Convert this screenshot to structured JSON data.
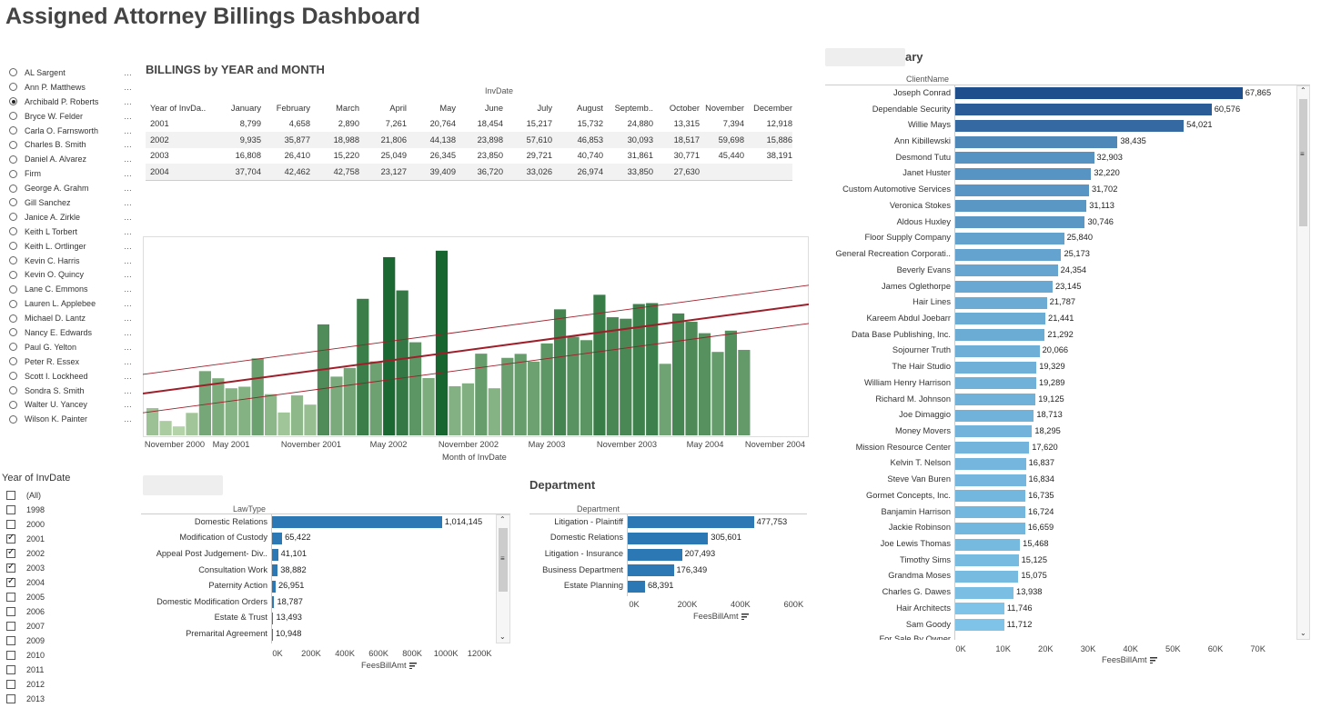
{
  "title": "Assigned Attorney Billings Dashboard",
  "attorneys": {
    "selected": "Archibald P. Roberts",
    "items": [
      "AL Sargent",
      "Ann P. Matthews",
      "Archibald P. Roberts",
      "Bryce W. Felder",
      "Carla O. Farnsworth",
      "Charles B. Smith",
      "Daniel A. Alvarez",
      "Firm",
      "George A. Grahm",
      "Gill Sanchez",
      "Janice A. Zirkle",
      "Keith L Torbert",
      "Keith L. Ortlinger",
      "Kevin C. Harris",
      "Kevin O. Quincy",
      "Lane C. Emmons",
      "Lauren L. Applebee",
      "Michael D.  Lantz",
      "Nancy E. Edwards",
      "Paul G. Yelton",
      "Peter R. Essex",
      "Scott I. Lockheed",
      "Sondra S. Smith",
      "Walter U. Yancey",
      "Wilson K. Painter"
    ],
    "more_icon": "…"
  },
  "year_filter": {
    "title": "Year of InvDate",
    "items": [
      {
        "label": "(All)",
        "checked": false
      },
      {
        "label": "1998",
        "checked": false
      },
      {
        "label": "2000",
        "checked": false
      },
      {
        "label": "2001",
        "checked": true
      },
      {
        "label": "2002",
        "checked": true
      },
      {
        "label": "2003",
        "checked": true
      },
      {
        "label": "2004",
        "checked": true
      },
      {
        "label": "2005",
        "checked": false
      },
      {
        "label": "2006",
        "checked": false
      },
      {
        "label": "2007",
        "checked": false
      },
      {
        "label": "2009",
        "checked": false
      },
      {
        "label": "2010",
        "checked": false
      },
      {
        "label": "2011",
        "checked": false
      },
      {
        "label": "2012",
        "checked": false
      },
      {
        "label": "2013",
        "checked": false
      }
    ]
  },
  "billings_table": {
    "title": "BILLINGS by YEAR and MONTH",
    "col_group": "InvDate",
    "row_header": "Year of InvDa..",
    "columns": [
      "January",
      "February",
      "March",
      "April",
      "May",
      "June",
      "July",
      "August",
      "Septemb..",
      "October",
      "November",
      "December"
    ],
    "rows": [
      {
        "year": "2001",
        "values": [
          "8,799",
          "4,658",
          "2,890",
          "7,261",
          "20,764",
          "18,454",
          "15,217",
          "15,732",
          "24,880",
          "13,315",
          "7,394",
          "12,918"
        ]
      },
      {
        "year": "2002",
        "values": [
          "9,935",
          "35,877",
          "18,988",
          "21,806",
          "44,138",
          "23,898",
          "57,610",
          "46,853",
          "30,093",
          "18,517",
          "59,698",
          "15,886"
        ]
      },
      {
        "year": "2003",
        "values": [
          "16,808",
          "26,410",
          "15,220",
          "25,049",
          "26,345",
          "23,850",
          "29,721",
          "40,740",
          "31,861",
          "30,771",
          "45,440",
          "38,191"
        ]
      },
      {
        "year": "2004",
        "values": [
          "37,704",
          "42,462",
          "42,758",
          "23,127",
          "39,409",
          "36,720",
          "33,026",
          "26,974",
          "33,850",
          "27,630",
          "",
          ""
        ]
      }
    ]
  },
  "chart_data": [
    {
      "type": "bar",
      "title": "",
      "xlabel": "Month of InvDate",
      "ylabel": "",
      "x_tick_labels": [
        "November 2000",
        "May 2001",
        "November 2001",
        "May 2002",
        "November 2002",
        "May 2003",
        "November 2003",
        "May 2004",
        "November 2004"
      ],
      "categories": [
        "2001-01",
        "2001-02",
        "2001-03",
        "2001-04",
        "2001-05",
        "2001-06",
        "2001-07",
        "2001-08",
        "2001-09",
        "2001-10",
        "2001-11",
        "2001-12",
        "2002-01",
        "2002-02",
        "2002-03",
        "2002-04",
        "2002-05",
        "2002-06",
        "2002-07",
        "2002-08",
        "2002-09",
        "2002-10",
        "2002-11",
        "2002-12",
        "2003-01",
        "2003-02",
        "2003-03",
        "2003-04",
        "2003-05",
        "2003-06",
        "2003-07",
        "2003-08",
        "2003-09",
        "2003-10",
        "2003-11",
        "2003-12",
        "2004-01",
        "2004-02",
        "2004-03",
        "2004-04",
        "2004-05",
        "2004-06",
        "2004-07",
        "2004-08",
        "2004-09",
        "2004-10"
      ],
      "values": [
        8799,
        4658,
        2890,
        7261,
        20764,
        18454,
        15217,
        15732,
        24880,
        13315,
        7394,
        12918,
        9935,
        35877,
        18988,
        21806,
        44138,
        23898,
        57610,
        46853,
        30093,
        18517,
        59698,
        15886,
        16808,
        26410,
        15220,
        25049,
        26345,
        23850,
        29721,
        40740,
        31861,
        30771,
        45440,
        38191,
        37704,
        42462,
        42758,
        23127,
        39409,
        36720,
        33026,
        26974,
        33850,
        27630
      ],
      "ylim": [
        0,
        62000
      ],
      "trend_lines": true,
      "grid": false,
      "colors": {
        "light": "#b5d3a8",
        "dark": "#17652f",
        "trend": "#a01e2a"
      }
    },
    {
      "type": "bar",
      "orientation": "horizontal",
      "title": "",
      "ylabel": "LawType",
      "xlabel": "FeesBillAmt",
      "categories": [
        "Domestic Relations",
        "Modification of Custody",
        "Appeal Post Judgement- Div..",
        "Consultation Work",
        "Paternity Action",
        "Domestic Modification Orders",
        "Estate & Trust",
        "Premarital Agreement"
      ],
      "values": [
        1014145,
        65422,
        41101,
        38882,
        26951,
        18787,
        13493,
        10948
      ],
      "value_labels": [
        "1,014,145",
        "65,422",
        "41,101",
        "38,882",
        "26,951",
        "18,787",
        "13,493",
        "10,948"
      ],
      "ticks": [
        "0K",
        "200K",
        "400K",
        "600K",
        "800K",
        "1000K",
        "1200K"
      ],
      "xlim": [
        0,
        1280000
      ],
      "colors": {
        "bar": "#2b78b5"
      }
    },
    {
      "type": "bar",
      "orientation": "horizontal",
      "title": "Department",
      "ylabel": "Department",
      "xlabel": "FeesBillAmt",
      "categories": [
        "Litigation - Plaintiff",
        "Domestic Relations",
        "Litigation - Insurance",
        "Business Department",
        "Estate Planning"
      ],
      "values": [
        477753,
        305601,
        207493,
        176349,
        68391
      ],
      "value_labels": [
        "477,753",
        "305,601",
        "207,493",
        "176,349",
        "68,391"
      ],
      "ticks": [
        "0K",
        "200K",
        "400K",
        "600K"
      ],
      "xlim": [
        0,
        640000
      ],
      "colors": {
        "bar": "#2b78b5"
      }
    },
    {
      "type": "bar",
      "orientation": "horizontal",
      "title": "ary",
      "ylabel": "ClientName",
      "xlabel": "FeesBillAmt",
      "categories": [
        "Joseph Conrad",
        "Dependable Security",
        "Willie Mays",
        "Ann Kibillewski",
        "Desmond Tutu",
        "Janet Huster",
        "Custom Automotive Services",
        "Veronica Stokes",
        "Aldous Huxley",
        "Floor Supply Company",
        "General Recreation Corporati..",
        "Beverly Evans",
        "James Oglethorpe",
        "Hair Lines",
        "Kareem Abdul Joebarr",
        "Data Base Publishing, Inc.",
        "Sojourner Truth",
        "The Hair Studio",
        "William Henry Harrison",
        "Richard M. Johnson",
        "Joe Dimaggio",
        "Money Movers",
        "Mission Resource Center",
        "Kelvin T. Nelson",
        "Steve Van Buren",
        "Gormet Concepts, Inc.",
        "Banjamin Harrison",
        "Jackie Robinson",
        "Joe Lewis Thomas",
        "Timothy Sims",
        "Grandma Moses",
        "Charles G. Dawes",
        "Hair Architects",
        "Sam Goody"
      ],
      "values": [
        67865,
        60576,
        54021,
        38435,
        32903,
        32220,
        31702,
        31113,
        30746,
        25840,
        25173,
        24354,
        23145,
        21787,
        21441,
        21292,
        20066,
        19329,
        19289,
        19125,
        18713,
        18295,
        17620,
        16837,
        16834,
        16735,
        16724,
        16659,
        15468,
        15125,
        15075,
        13938,
        11746,
        11712
      ],
      "value_labels": [
        "67,865",
        "60,576",
        "54,021",
        "38,435",
        "32,903",
        "32,220",
        "31,702",
        "31,113",
        "30,746",
        "25,840",
        "25,173",
        "24,354",
        "23,145",
        "21,787",
        "21,441",
        "21,292",
        "20,066",
        "19,329",
        "19,289",
        "19,125",
        "18,713",
        "18,295",
        "17,620",
        "16,837",
        "16,834",
        "16,735",
        "16,724",
        "16,659",
        "15,468",
        "15,125",
        "15,075",
        "13,938",
        "11,746",
        "11,712"
      ],
      "partial_last_label": "For Sale By Owner",
      "ticks": [
        "0K",
        "10K",
        "20K",
        "30K",
        "40K",
        "50K",
        "60K",
        "70K"
      ],
      "xlim": [
        0,
        75000
      ],
      "colors": {
        "dark": "#1f4e8c",
        "light": "#7fc4e8"
      }
    }
  ]
}
